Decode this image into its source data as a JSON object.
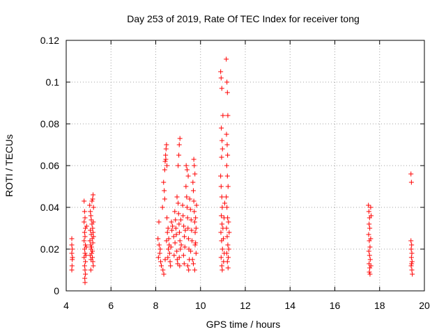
{
  "chart_data": {
    "type": "scatter",
    "title": "Day 253 of 2019, Rate Of TEC Index for receiver tong",
    "xlabel": "GPS time / hours",
    "ylabel": "ROTI / TECUs",
    "xlim": [
      4,
      20
    ],
    "ylim": [
      0,
      0.12
    ],
    "xticks": [
      4,
      6,
      8,
      10,
      12,
      14,
      16,
      18,
      20
    ],
    "xtick_labels": [
      "4",
      "6",
      "8",
      "10",
      "12",
      "14",
      "16",
      "18",
      "20"
    ],
    "yticks": [
      0,
      0.02,
      0.04,
      0.06,
      0.08,
      0.1,
      0.12
    ],
    "ytick_labels": [
      "0",
      "0.02",
      "0.04",
      "0.06",
      "0.08",
      "0.1",
      "0.12"
    ],
    "grid": true,
    "marker": "plus",
    "color": "#ff0000",
    "series": [
      {
        "name": "ROTI",
        "points": [
          [
            4.25,
            0.025
          ],
          [
            4.25,
            0.022
          ],
          [
            4.27,
            0.02
          ],
          [
            4.25,
            0.018
          ],
          [
            4.27,
            0.015
          ],
          [
            4.26,
            0.012
          ],
          [
            4.25,
            0.01
          ],
          [
            4.28,
            0.016
          ],
          [
            4.8,
            0.043
          ],
          [
            4.82,
            0.038
          ],
          [
            4.84,
            0.035
          ],
          [
            4.8,
            0.033
          ],
          [
            4.86,
            0.03
          ],
          [
            4.82,
            0.028
          ],
          [
            4.84,
            0.026
          ],
          [
            4.8,
            0.024
          ],
          [
            4.86,
            0.022
          ],
          [
            4.82,
            0.02
          ],
          [
            4.84,
            0.018
          ],
          [
            4.8,
            0.016
          ],
          [
            4.86,
            0.014
          ],
          [
            4.82,
            0.012
          ],
          [
            4.84,
            0.01
          ],
          [
            4.86,
            0.008
          ],
          [
            4.83,
            0.006
          ],
          [
            4.84,
            0.004
          ],
          [
            4.9,
            0.021
          ],
          [
            4.88,
            0.017
          ],
          [
            4.91,
            0.031
          ],
          [
            5.05,
            0.041
          ],
          [
            5.08,
            0.038
          ],
          [
            5.1,
            0.036
          ],
          [
            5.12,
            0.034
          ],
          [
            5.15,
            0.032
          ],
          [
            5.18,
            0.03
          ],
          [
            5.2,
            0.028
          ],
          [
            5.22,
            0.026
          ],
          [
            5.06,
            0.024
          ],
          [
            5.09,
            0.022
          ],
          [
            5.11,
            0.02
          ],
          [
            5.14,
            0.018
          ],
          [
            5.17,
            0.016
          ],
          [
            5.19,
            0.014
          ],
          [
            5.21,
            0.012
          ],
          [
            5.1,
            0.01
          ],
          [
            5.15,
            0.043
          ],
          [
            5.18,
            0.044
          ],
          [
            5.2,
            0.046
          ],
          [
            5.22,
            0.04
          ],
          [
            5.12,
            0.027
          ],
          [
            5.16,
            0.025
          ],
          [
            5.08,
            0.029
          ],
          [
            5.13,
            0.021
          ],
          [
            5.19,
            0.023
          ],
          [
            5.11,
            0.015
          ],
          [
            5.17,
            0.019
          ],
          [
            5.21,
            0.033
          ],
          [
            5.07,
            0.017
          ],
          [
            8.1,
            0.025
          ],
          [
            8.15,
            0.022
          ],
          [
            8.2,
            0.02
          ],
          [
            8.18,
            0.018
          ],
          [
            8.12,
            0.016
          ],
          [
            8.22,
            0.014
          ],
          [
            8.25,
            0.012
          ],
          [
            8.14,
            0.033
          ],
          [
            8.3,
            0.04
          ],
          [
            8.35,
            0.052
          ],
          [
            8.38,
            0.048
          ],
          [
            8.4,
            0.044
          ],
          [
            8.32,
            0.01
          ],
          [
            8.36,
            0.008
          ],
          [
            8.42,
            0.015
          ],
          [
            8.4,
            0.058
          ],
          [
            8.42,
            0.062
          ],
          [
            8.44,
            0.065
          ],
          [
            8.46,
            0.068
          ],
          [
            8.48,
            0.07
          ],
          [
            8.5,
            0.06
          ],
          [
            8.45,
            0.063
          ],
          [
            8.5,
            0.035
          ],
          [
            8.55,
            0.03
          ],
          [
            8.52,
            0.028
          ],
          [
            8.58,
            0.025
          ],
          [
            8.6,
            0.022
          ],
          [
            8.56,
            0.02
          ],
          [
            8.62,
            0.018
          ],
          [
            8.54,
            0.016
          ],
          [
            8.64,
            0.014
          ],
          [
            8.66,
            0.012
          ],
          [
            8.48,
            0.024
          ],
          [
            8.7,
            0.033
          ],
          [
            8.72,
            0.029
          ],
          [
            8.68,
            0.021
          ],
          [
            8.75,
            0.031
          ],
          [
            8.8,
            0.026
          ],
          [
            8.85,
            0.038
          ],
          [
            8.88,
            0.034
          ],
          [
            8.9,
            0.03
          ],
          [
            8.92,
            0.027
          ],
          [
            8.86,
            0.023
          ],
          [
            8.94,
            0.019
          ],
          [
            8.96,
            0.015
          ],
          [
            8.98,
            0.013
          ],
          [
            8.82,
            0.017
          ],
          [
            8.95,
            0.045
          ],
          [
            9.0,
            0.042
          ],
          [
            9.02,
            0.037
          ],
          [
            9.04,
            0.032
          ],
          [
            9.06,
            0.028
          ],
          [
            9.08,
            0.024
          ],
          [
            9.1,
            0.02
          ],
          [
            9.05,
            0.016
          ],
          [
            9.07,
            0.012
          ],
          [
            9.0,
            0.06
          ],
          [
            9.05,
            0.07
          ],
          [
            9.08,
            0.073
          ],
          [
            9.03,
            0.065
          ],
          [
            9.12,
            0.034
          ],
          [
            9.14,
            0.022
          ],
          [
            9.2,
            0.041
          ],
          [
            9.22,
            0.036
          ],
          [
            9.25,
            0.031
          ],
          [
            9.28,
            0.026
          ],
          [
            9.3,
            0.021
          ],
          [
            9.24,
            0.017
          ],
          [
            9.27,
            0.013
          ],
          [
            9.32,
            0.029
          ],
          [
            9.35,
            0.05
          ],
          [
            9.38,
            0.045
          ],
          [
            9.4,
            0.04
          ],
          [
            9.42,
            0.035
          ],
          [
            9.44,
            0.03
          ],
          [
            9.46,
            0.025
          ],
          [
            9.48,
            0.02
          ],
          [
            9.5,
            0.015
          ],
          [
            9.36,
            0.06
          ],
          [
            9.4,
            0.058
          ],
          [
            9.45,
            0.055
          ],
          [
            9.43,
            0.012
          ],
          [
            9.47,
            0.01
          ],
          [
            9.52,
            0.044
          ],
          [
            9.55,
            0.039
          ],
          [
            9.58,
            0.034
          ],
          [
            9.6,
            0.029
          ],
          [
            9.62,
            0.024
          ],
          [
            9.56,
            0.019
          ],
          [
            9.64,
            0.015
          ],
          [
            9.66,
            0.052
          ],
          [
            9.68,
            0.048
          ],
          [
            9.7,
            0.043
          ],
          [
            9.72,
            0.038
          ],
          [
            9.74,
            0.033
          ],
          [
            9.76,
            0.028
          ],
          [
            9.78,
            0.023
          ],
          [
            9.8,
            0.018
          ],
          [
            9.7,
            0.063
          ],
          [
            9.72,
            0.06
          ],
          [
            9.75,
            0.056
          ],
          [
            9.68,
            0.013
          ],
          [
            9.74,
            0.01
          ],
          [
            9.82,
            0.041
          ],
          [
            9.78,
            0.035
          ],
          [
            9.8,
            0.03
          ],
          [
            9.76,
            0.022
          ],
          [
            10.9,
            0.105
          ],
          [
            10.92,
            0.102
          ],
          [
            10.95,
            0.097
          ],
          [
            10.93,
            0.078
          ],
          [
            10.96,
            0.072
          ],
          [
            10.98,
            0.068
          ],
          [
            10.94,
            0.064
          ],
          [
            10.9,
            0.055
          ],
          [
            10.92,
            0.05
          ],
          [
            10.95,
            0.045
          ],
          [
            10.97,
            0.04
          ],
          [
            10.93,
            0.036
          ],
          [
            10.96,
            0.032
          ],
          [
            10.91,
            0.028
          ],
          [
            10.94,
            0.024
          ],
          [
            10.98,
            0.02
          ],
          [
            10.92,
            0.016
          ],
          [
            10.95,
            0.012
          ],
          [
            10.97,
            0.01
          ],
          [
            11.0,
            0.03
          ],
          [
            11.02,
            0.025
          ],
          [
            11.05,
            0.035
          ],
          [
            11.0,
            0.084
          ],
          [
            11.08,
            0.042
          ],
          [
            11.06,
            0.018
          ],
          [
            11.03,
            0.014
          ],
          [
            11.15,
            0.111
          ],
          [
            11.18,
            0.1
          ],
          [
            11.2,
            0.095
          ],
          [
            11.22,
            0.084
          ],
          [
            11.16,
            0.075
          ],
          [
            11.19,
            0.07
          ],
          [
            11.21,
            0.065
          ],
          [
            11.17,
            0.06
          ],
          [
            11.2,
            0.055
          ],
          [
            11.23,
            0.05
          ],
          [
            11.15,
            0.045
          ],
          [
            11.18,
            0.04
          ],
          [
            11.21,
            0.035
          ],
          [
            11.16,
            0.03
          ],
          [
            11.19,
            0.026
          ],
          [
            11.22,
            0.022
          ],
          [
            11.17,
            0.018
          ],
          [
            11.2,
            0.014
          ],
          [
            11.23,
            0.011
          ],
          [
            11.25,
            0.033
          ],
          [
            11.28,
            0.028
          ],
          [
            11.26,
            0.02
          ],
          [
            11.24,
            0.016
          ],
          [
            17.5,
            0.041
          ],
          [
            17.52,
            0.038
          ],
          [
            17.55,
            0.035
          ],
          [
            17.53,
            0.032
          ],
          [
            17.56,
            0.03
          ],
          [
            17.51,
            0.027
          ],
          [
            17.54,
            0.024
          ],
          [
            17.57,
            0.021
          ],
          [
            17.52,
            0.019
          ],
          [
            17.55,
            0.017
          ],
          [
            17.58,
            0.015
          ],
          [
            17.53,
            0.013
          ],
          [
            17.56,
            0.011
          ],
          [
            17.54,
            0.009
          ],
          [
            17.57,
            0.008
          ],
          [
            17.6,
            0.04
          ],
          [
            17.62,
            0.036
          ],
          [
            17.6,
            0.025
          ],
          [
            17.61,
            0.012
          ],
          [
            19.4,
            0.056
          ],
          [
            19.42,
            0.052
          ],
          [
            19.4,
            0.024
          ],
          [
            19.43,
            0.022
          ],
          [
            19.41,
            0.02
          ],
          [
            19.44,
            0.018
          ],
          [
            19.42,
            0.016
          ],
          [
            19.45,
            0.014
          ],
          [
            19.41,
            0.012
          ],
          [
            19.44,
            0.01
          ],
          [
            19.46,
            0.008
          ],
          [
            19.43,
            0.013
          ]
        ]
      }
    ]
  }
}
